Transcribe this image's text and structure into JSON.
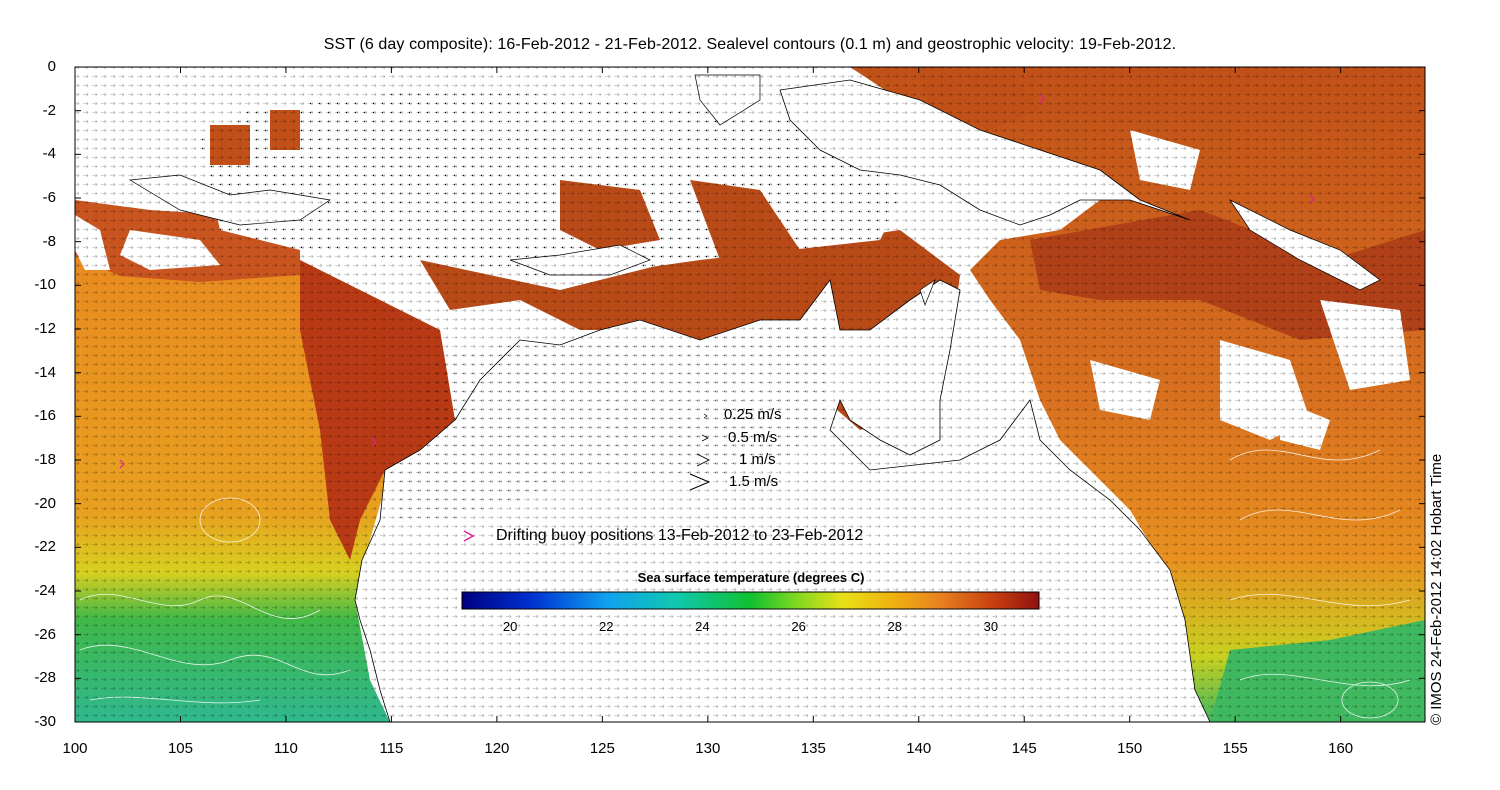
{
  "title": "SST (6 day composite): 16-Feb-2012 - 21-Feb-2012. Sealevel contours (0.1 m) and geostrophic velocity: 19-Feb-2012.",
  "axes": {
    "x_ticks": [
      "100",
      "105",
      "110",
      "115",
      "120",
      "125",
      "130",
      "135",
      "140",
      "145",
      "150",
      "155",
      "160"
    ],
    "y_ticks": [
      "0",
      "-2",
      "-4",
      "-6",
      "-8",
      "-10",
      "-12",
      "-14",
      "-16",
      "-18",
      "-20",
      "-22",
      "-24",
      "-26",
      "-28",
      "-30"
    ],
    "xlim": [
      100,
      164
    ],
    "ylim": [
      -30,
      0
    ]
  },
  "velocity_legend": [
    {
      "label": "0.25 m/s"
    },
    {
      "label": "0.5 m/s"
    },
    {
      "label": "1 m/s"
    },
    {
      "label": "1.5 m/s"
    }
  ],
  "buoy_legend": {
    "label": "Drifting buoy positions 13-Feb-2012 to 23-Feb-2012",
    "color": "#e0209a"
  },
  "colorbar": {
    "label": "Sea surface temperature (degrees C)",
    "range": [
      19,
      31
    ],
    "ticks": [
      "20",
      "22",
      "24",
      "26",
      "28",
      "30"
    ]
  },
  "credit": "© IMOS 24-Feb-2012 14:02 Hobart Time",
  "colors": {
    "warm": "#c8501a",
    "hot": "#9e2a10",
    "orange": "#e88a20",
    "yellow": "#e6d81e",
    "green": "#34b44a",
    "land": "#ffffff"
  }
}
